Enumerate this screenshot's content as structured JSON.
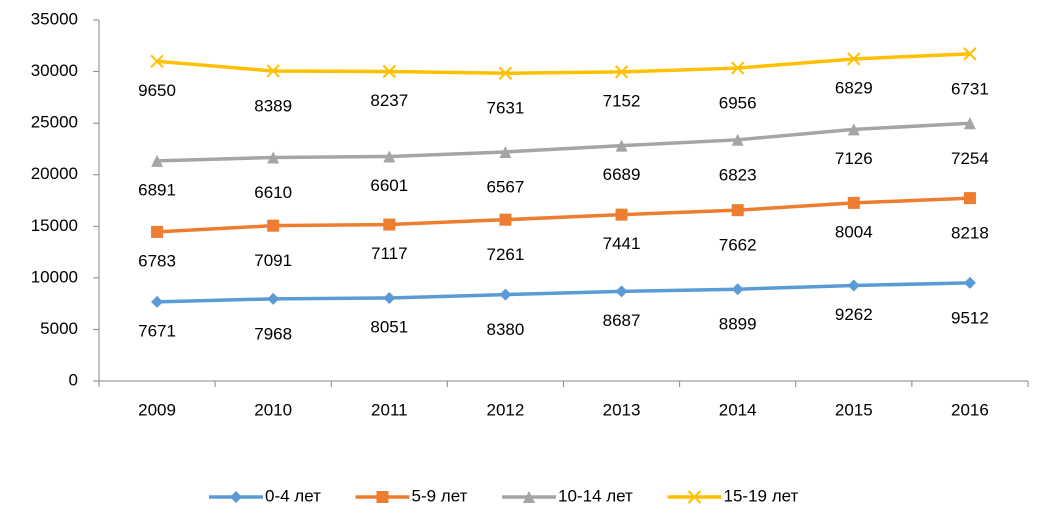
{
  "chart_data": {
    "type": "line",
    "stacked": true,
    "categories": [
      "2009",
      "2010",
      "2011",
      "2012",
      "2013",
      "2014",
      "2015",
      "2016"
    ],
    "series": [
      {
        "name": "0-4 лет",
        "color": "#5b9bd5",
        "marker": "diamond",
        "values": [
          7671,
          7968,
          8051,
          8380,
          8687,
          8899,
          9262,
          9512
        ]
      },
      {
        "name": "5-9 лет",
        "color": "#ed7d31",
        "marker": "square",
        "values": [
          6783,
          7091,
          7117,
          7261,
          7441,
          7662,
          8004,
          8218
        ]
      },
      {
        "name": "10-14 лет",
        "color": "#a5a5a5",
        "marker": "triangle",
        "values": [
          6891,
          6610,
          6601,
          6567,
          6689,
          6823,
          7126,
          7254
        ]
      },
      {
        "name": "15-19 лет",
        "color": "#ffc000",
        "marker": "x",
        "values": [
          9650,
          8389,
          8237,
          7631,
          7152,
          6956,
          6829,
          6731
        ]
      }
    ],
    "ylim": [
      0,
      35000
    ],
    "yticks": [
      0,
      5000,
      10000,
      15000,
      20000,
      25000,
      30000,
      35000
    ],
    "grid": false,
    "legend": "bottom"
  }
}
